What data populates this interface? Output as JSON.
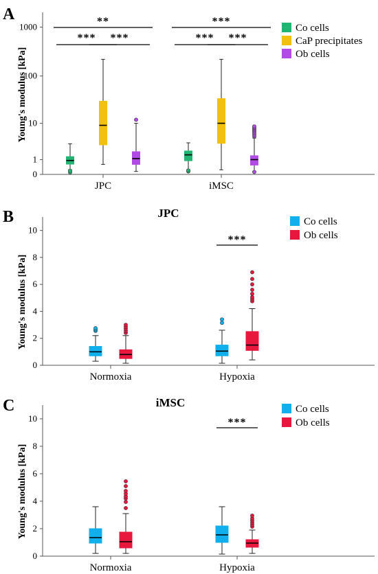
{
  "chart_data": [
    {
      "panel": "A",
      "type": "box",
      "title": "",
      "ylabel": "Young's modulus [kPa]",
      "xlabel": "",
      "yscale": "log1p",
      "yticks": [
        0,
        1,
        10,
        100,
        1000
      ],
      "ylim": [
        0,
        2000
      ],
      "categories": [
        "JPC",
        "iMSC"
      ],
      "legend": {
        "position": "top-right"
      },
      "series": [
        {
          "name": "Co cells",
          "color": "#21b573",
          "boxes": [
            {
              "whisker_low": 0.25,
              "q1": 0.62,
              "median": 0.92,
              "q3": 1.3,
              "whisker_high": 3.2,
              "outliers": [
                0.1,
                0.18
              ]
            },
            {
              "whisker_low": 0.25,
              "q1": 0.9,
              "median": 1.5,
              "q3": 2.0,
              "whisker_high": 3.4,
              "outliers": [
                0.15,
                0.2
              ]
            }
          ]
        },
        {
          "name": "CaP precipitates",
          "color": "#f2c011",
          "boxes": [
            {
              "whisker_low": 0.6,
              "q1": 3.0,
              "median": 9.0,
              "q3": 30,
              "whisker_high": 220,
              "outliers": []
            },
            {
              "whisker_low": 0.24,
              "q1": 3.3,
              "median": 10,
              "q3": 34,
              "whisker_high": 220,
              "outliers": []
            }
          ]
        },
        {
          "name": "Ob cells",
          "color": "#b24be6",
          "boxes": [
            {
              "whisker_low": 0.15,
              "q1": 0.6,
              "median": 1.1,
              "q3": 1.9,
              "whisker_high": 10,
              "outliers": [
                12
              ]
            },
            {
              "whisker_low": 0.15,
              "q1": 0.55,
              "median": 1.0,
              "q3": 1.4,
              "whisker_high": 4.5,
              "outliers": [
                5,
                5.5,
                6,
                6.5,
                7,
                7.5,
                8,
                8.5,
                0.12
              ]
            }
          ]
        }
      ],
      "significance": [
        {
          "label": "**",
          "from_cat": 0,
          "from_series": 0,
          "to_cat": 0,
          "to_series": 2,
          "level": 2
        },
        {
          "label": "***",
          "from_cat": 0,
          "from_series": 0,
          "to_cat": 0,
          "to_series": 1,
          "level": 1
        },
        {
          "label": "***",
          "from_cat": 0,
          "from_series": 1,
          "to_cat": 0,
          "to_series": 2,
          "level": 1
        },
        {
          "label": "***",
          "from_cat": 1,
          "from_series": 0,
          "to_cat": 1,
          "to_series": 2,
          "level": 2
        },
        {
          "label": "***",
          "from_cat": 1,
          "from_series": 0,
          "to_cat": 1,
          "to_series": 1,
          "level": 1
        },
        {
          "label": "***",
          "from_cat": 1,
          "from_series": 1,
          "to_cat": 1,
          "to_series": 2,
          "level": 1
        }
      ]
    },
    {
      "panel": "B",
      "type": "box",
      "title": "JPC",
      "ylabel": "Young's modulus [kPa]",
      "xlabel": "",
      "yscale": "linear",
      "yticks": [
        0,
        2,
        4,
        6,
        8,
        10
      ],
      "ylim": [
        0,
        11
      ],
      "categories": [
        "Normoxia",
        "Hypoxia"
      ],
      "legend": {
        "position": "top-right"
      },
      "series": [
        {
          "name": "Co cells",
          "color": "#11b0ec",
          "boxes": [
            {
              "whisker_low": 0.3,
              "q1": 0.7,
              "median": 1.0,
              "q3": 1.4,
              "whisker_high": 2.2,
              "outliers": [
                2.55,
                2.65,
                2.75
              ]
            },
            {
              "whisker_low": 0.15,
              "q1": 0.7,
              "median": 1.05,
              "q3": 1.5,
              "whisker_high": 2.6,
              "outliers": [
                3.15,
                3.4
              ]
            }
          ]
        },
        {
          "name": "Ob cells",
          "color": "#e8173e",
          "boxes": [
            {
              "whisker_low": 0.15,
              "q1": 0.5,
              "median": 0.8,
              "q3": 1.15,
              "whisker_high": 2.2,
              "outliers": [
                2.4,
                2.55,
                2.7,
                2.85,
                3.0
              ]
            },
            {
              "whisker_low": 0.4,
              "q1": 1.1,
              "median": 1.5,
              "q3": 2.5,
              "whisker_high": 4.2,
              "outliers": [
                4.75,
                4.9,
                5.05,
                5.3,
                5.6,
                6.0,
                6.4,
                6.9
              ]
            }
          ]
        }
      ],
      "significance": [
        {
          "label": "***",
          "from_cat": 1,
          "from_series": 0,
          "to_cat": 1,
          "to_series": 1,
          "level": 1
        }
      ]
    },
    {
      "panel": "C",
      "type": "box",
      "title": "iMSC",
      "ylabel": "Young's modulus [kPa]",
      "xlabel": "",
      "yscale": "linear",
      "yticks": [
        0,
        2,
        4,
        6,
        8,
        10
      ],
      "ylim": [
        0,
        11
      ],
      "categories": [
        "Normoxia",
        "Hypoxia"
      ],
      "legend": {
        "position": "top-right"
      },
      "series": [
        {
          "name": "Co cells",
          "color": "#11b0ec",
          "boxes": [
            {
              "whisker_low": 0.2,
              "q1": 0.95,
              "median": 1.35,
              "q3": 2.0,
              "whisker_high": 3.6,
              "outliers": []
            },
            {
              "whisker_low": 0.15,
              "q1": 1.0,
              "median": 1.55,
              "q3": 2.2,
              "whisker_high": 3.6,
              "outliers": []
            }
          ]
        },
        {
          "name": "Ob cells",
          "color": "#e8173e",
          "boxes": [
            {
              "whisker_low": 0.2,
              "q1": 0.6,
              "median": 1.05,
              "q3": 1.75,
              "whisker_high": 3.1,
              "outliers": [
                3.5,
                3.95,
                4.2,
                4.35,
                4.55,
                4.75,
                5.1,
                5.45
              ]
            },
            {
              "whisker_low": 0.2,
              "q1": 0.65,
              "median": 0.95,
              "q3": 1.2,
              "whisker_high": 1.9,
              "outliers": [
                2.15,
                2.3,
                2.45,
                2.6,
                2.75,
                2.95
              ]
            }
          ]
        }
      ],
      "significance": [
        {
          "label": "***",
          "from_cat": 1,
          "from_series": 0,
          "to_cat": 1,
          "to_series": 1,
          "level": 1
        }
      ]
    }
  ]
}
